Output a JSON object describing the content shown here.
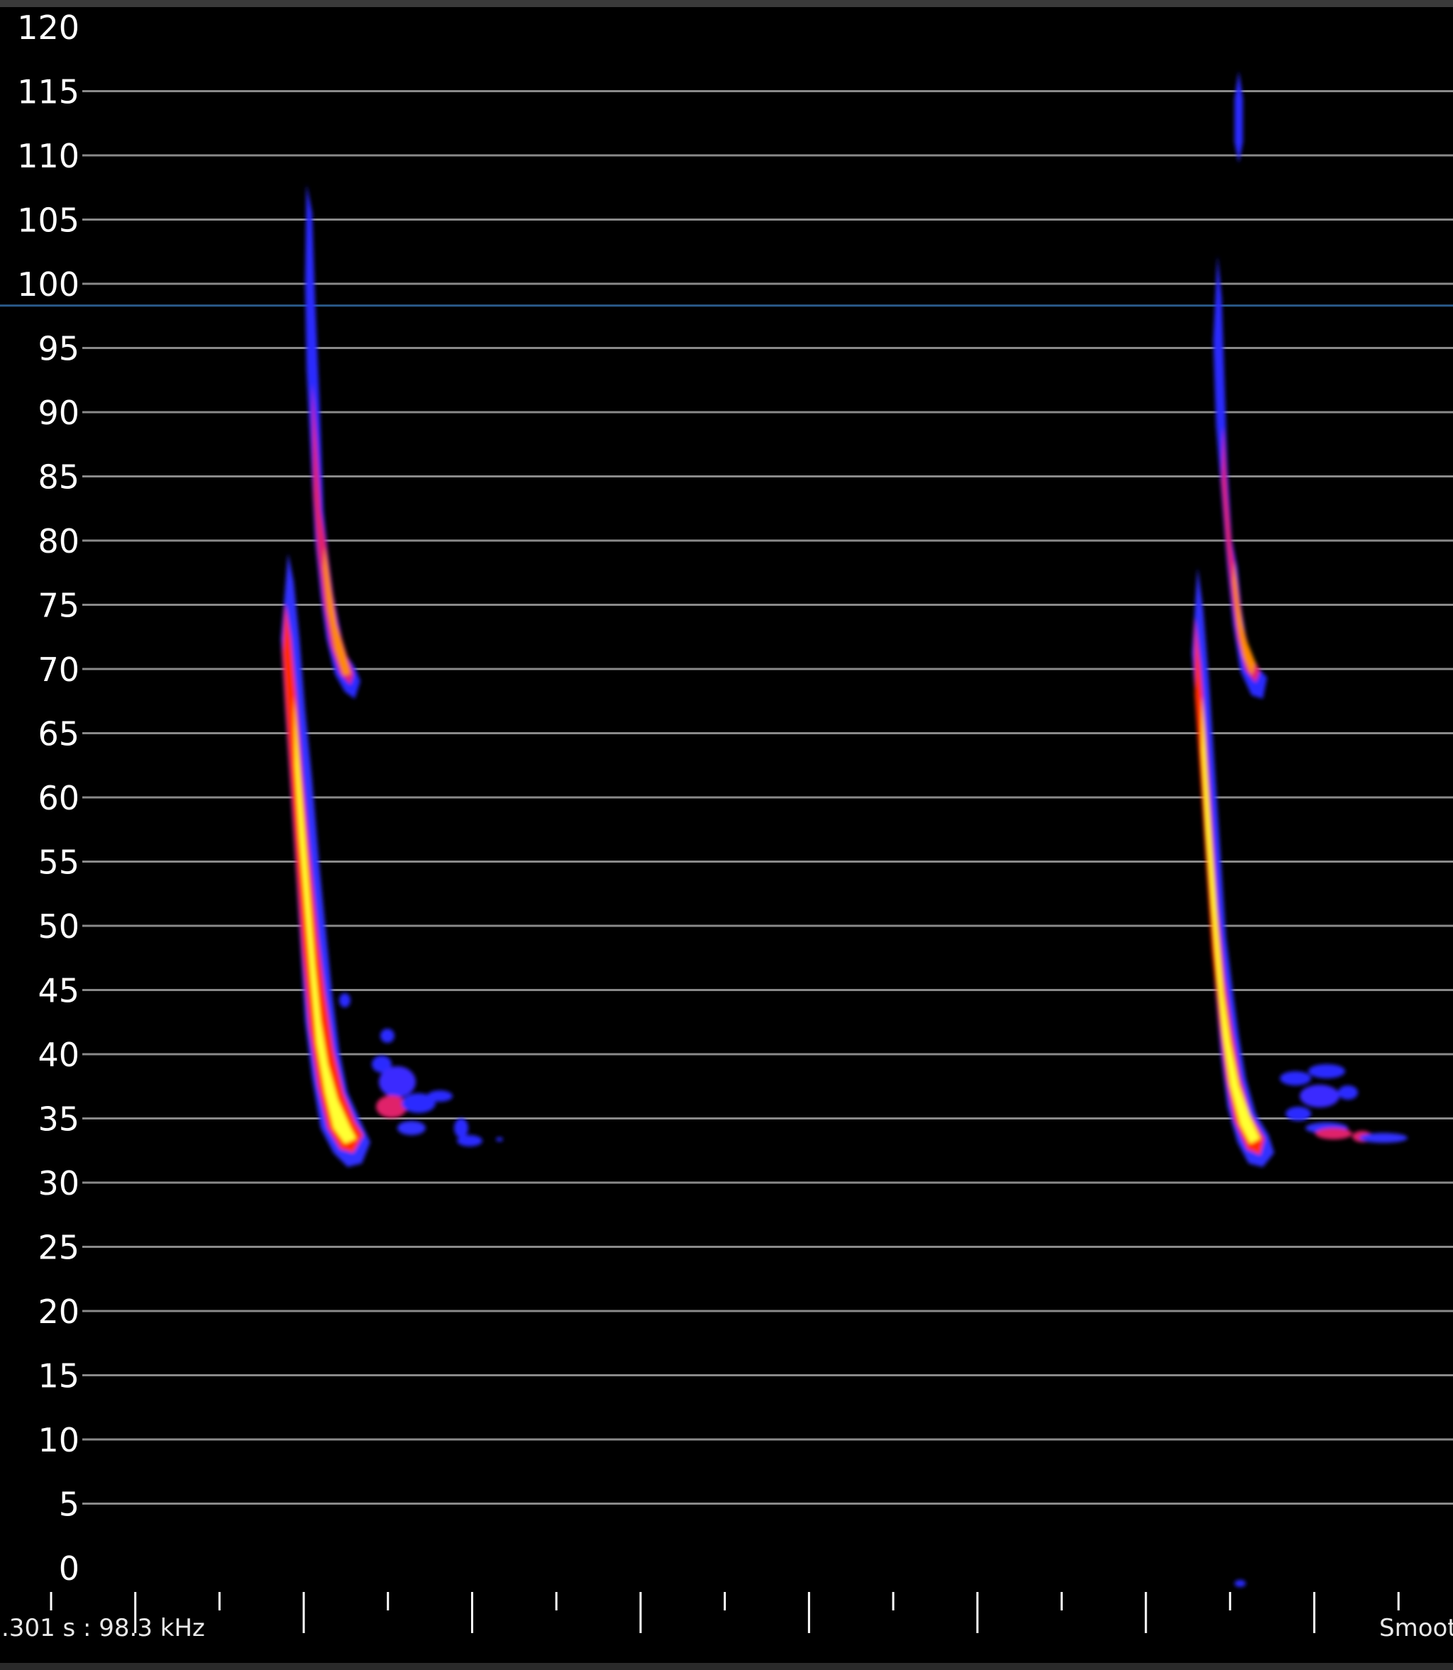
{
  "status_bar": {
    "cursor_readout": ".301 s : 98.3 kHz",
    "smoothing_label": "Smoot"
  },
  "cursor_frequency_khz": 98.3,
  "colors": {
    "background": "#000000",
    "gridline": "#8a8a8a",
    "cursor_line": "#2a5a8a",
    "palette": [
      "#2020ff",
      "#7a20ff",
      "#e0206a",
      "#ff2a00",
      "#ff8a00",
      "#ffd800",
      "#ffff30"
    ]
  },
  "chart_data": {
    "type": "heatmap",
    "y_unit": "kHz",
    "ylim": [
      0,
      120
    ],
    "y_ticks": [
      "0",
      "5",
      "10",
      "15",
      "20",
      "25",
      "30",
      "35",
      "40",
      "45",
      "50",
      "55",
      "60",
      "65",
      "70",
      "75",
      "80",
      "85",
      "90",
      "95",
      "100",
      "105",
      "110",
      "115",
      "120"
    ],
    "grid": true,
    "calls": [
      {
        "main_sweep_khz": [
          78,
          33
        ],
        "harmonic_khz": [
          106,
          68
        ],
        "tail_khz": [
          42,
          34
        ]
      },
      {
        "main_sweep_khz": [
          77,
          33
        ],
        "harmonic_khz": [
          115,
          68
        ],
        "tail_khz": [
          40,
          34
        ]
      }
    ]
  }
}
